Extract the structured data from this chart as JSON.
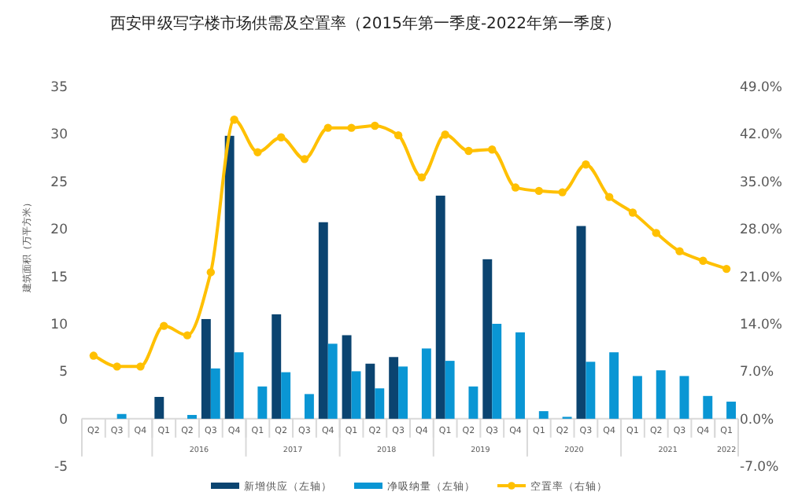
{
  "chart_data": {
    "type": "bar",
    "title": "西安甲级写字楼市场供需及空置率（2015年第一季度-2022年第一季度）",
    "ylabel": "建筑面积（万平方米）",
    "categories": [
      "Q2",
      "Q3",
      "Q4",
      "Q1",
      "Q2",
      "Q3",
      "Q4",
      "Q1",
      "Q2",
      "Q3",
      "Q4",
      "Q1",
      "Q2",
      "Q3",
      "Q4",
      "Q1",
      "Q2",
      "Q3",
      "Q4",
      "Q1",
      "Q2",
      "Q3",
      "Q4",
      "Q1",
      "Q2",
      "Q3",
      "Q4",
      "Q1"
    ],
    "annotations": [
      "2016",
      "2017",
      "2018",
      "2019",
      "2020",
      "2021",
      "2022"
    ],
    "series": [
      {
        "name": "新增供应（左轴）",
        "color": "#0b4470",
        "values": [
          0,
          0,
          0,
          2.3,
          0,
          10.5,
          29.8,
          0,
          11.0,
          0,
          20.7,
          8.8,
          5.8,
          6.5,
          0,
          23.5,
          0,
          16.8,
          0,
          0,
          0,
          20.3,
          0,
          0,
          0,
          0,
          0,
          0
        ]
      },
      {
        "name": "净吸纳量（左轴）",
        "color": "#0a96d4",
        "values": [
          0,
          0.5,
          0,
          0,
          0.4,
          5.3,
          7.0,
          3.4,
          4.9,
          2.6,
          7.9,
          5.0,
          3.2,
          5.5,
          7.4,
          6.1,
          3.4,
          10.0,
          9.1,
          0.8,
          0.2,
          6.0,
          7.0,
          4.5,
          5.1,
          4.5,
          2.4,
          1.8
        ]
      },
      {
        "name": "空置率（右轴）",
        "type": "line",
        "axis": "y2",
        "color": "#ffc000",
        "values": [
          9.3,
          7.7,
          7.7,
          13.7,
          12.3,
          21.6,
          44.1,
          39.3,
          41.5,
          38.3,
          42.9,
          42.9,
          43.2,
          41.8,
          35.6,
          41.9,
          39.5,
          39.7,
          34.1,
          33.6,
          33.4,
          37.5,
          32.7,
          30.4,
          27.4,
          24.7,
          23.3,
          22.1
        ]
      }
    ],
    "ylim": [
      -5,
      35
    ],
    "yticks": [
      -5,
      0,
      5,
      10,
      15,
      20,
      25,
      30,
      35
    ],
    "y2lim": [
      -7,
      49
    ],
    "y2ticks": [
      {
        "value": -7,
        "label": "-7.0%"
      },
      {
        "value": 0,
        "label": "0.0%"
      },
      {
        "value": 7,
        "label": "7.0%"
      },
      {
        "value": 14,
        "label": "14.0%"
      },
      {
        "value": 21,
        "label": "21.0%"
      },
      {
        "value": 28,
        "label": "28.0%"
      },
      {
        "value": 35,
        "label": "35.0%"
      },
      {
        "value": 42,
        "label": "42.0%"
      },
      {
        "value": 49,
        "label": "49.0%"
      }
    ],
    "legend": "bottom",
    "marker": "circle",
    "line_style": "solid",
    "grid": false
  }
}
